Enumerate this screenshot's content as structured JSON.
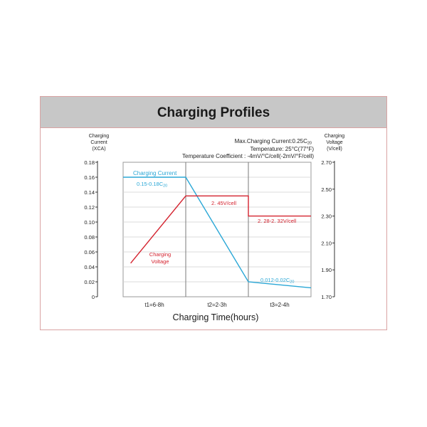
{
  "chart_data": {
    "type": "line",
    "title": "Charging Profiles",
    "xlabel": "Charging Time(hours)",
    "y_left": {
      "label": [
        "Charging",
        "Current",
        "(XCA)"
      ],
      "ticks": [
        "0",
        "0.02",
        "0.04",
        "0.06",
        "0.08",
        "0.10",
        "0.12",
        "0.14",
        "0.16",
        "0.18"
      ],
      "ylim": [
        0,
        0.18
      ]
    },
    "y_right": {
      "label": [
        "Charging",
        "Voltage",
        "(V/cell)"
      ],
      "ticks": [
        "1.70",
        "1.90",
        "2.10",
        "2.30",
        "2.50",
        "2.70"
      ],
      "ylim": [
        1.7,
        2.7
      ]
    },
    "periods": [
      "t1=6-8h",
      "t2=2-3h",
      "t3=2-4h"
    ],
    "notes": [
      "Max.Charging Current:0.25C",
      "Temperature: 25°C(77°F)",
      "Temperature  Coefficient : -4mV/°C/cell(-2mV/°F/cell)"
    ],
    "notes_subscript": "20",
    "series": [
      {
        "name": "Charging Current",
        "axis": "left",
        "color": "#2aa7d6",
        "points": [
          [
            0,
            0.16
          ],
          [
            1,
            0.16
          ],
          [
            2,
            0.02
          ],
          [
            3,
            0.012
          ]
        ]
      },
      {
        "name": "Charging Voltage",
        "axis": "right",
        "color": "#d4232f",
        "points": [
          [
            0.12,
            1.95
          ],
          [
            1,
            2.45
          ],
          [
            2,
            2.45
          ],
          [
            2,
            2.3
          ],
          [
            3,
            2.3
          ]
        ]
      }
    ],
    "annotations": {
      "current_label": "Charging Current",
      "current_range": "0.15-0.18C",
      "current_range_sub": "20",
      "voltage_label_1": "Charging",
      "voltage_label_2": "Voltage",
      "voltage_high": "2. 45V/cell",
      "voltage_low": "2. 28-2. 32V/cell",
      "current_end": "0.012-0.02C",
      "current_end_sub": "20"
    },
    "grid": true
  }
}
